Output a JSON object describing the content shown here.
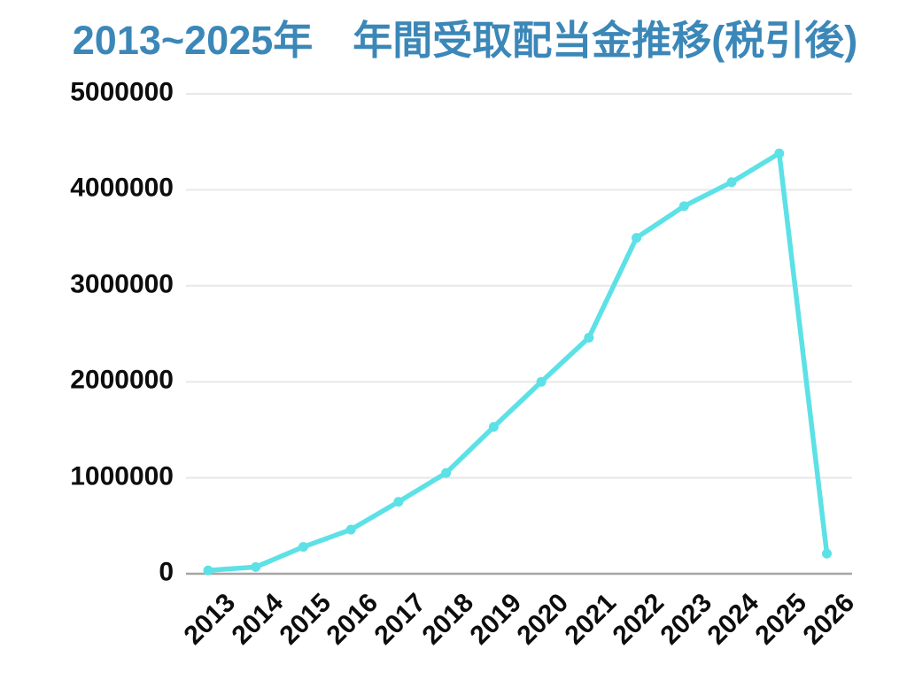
{
  "chart_data": {
    "type": "line",
    "title": "2013~2025年　年間受取配当金推移(税引後)",
    "categories": [
      "2013",
      "2014",
      "2015",
      "2016",
      "2017",
      "2018",
      "2019",
      "2020",
      "2021",
      "2022",
      "2023",
      "2024",
      "2025",
      "2026"
    ],
    "values": [
      35000,
      70000,
      280000,
      460000,
      750000,
      1050000,
      1530000,
      2000000,
      2460000,
      3500000,
      3830000,
      4080000,
      4380000,
      210000
    ],
    "xlabel": "",
    "ylabel": "",
    "ylim": [
      0,
      5000000
    ],
    "y_ticks": [
      0,
      1000000,
      2000000,
      3000000,
      4000000,
      5000000
    ],
    "y_tick_labels": [
      "0",
      "1000000",
      "2000000",
      "3000000",
      "4000000",
      "5000000"
    ],
    "grid": "horizontal",
    "legend": "none",
    "marker": "circle",
    "colors": {
      "line": "#5CE1E6",
      "marker": "#5CE1E6",
      "title": "#3B87B8",
      "tick_label": "#0D0D0D",
      "gridline": "#E8E8E8",
      "axis_line": "#A6A6A6",
      "background": "#FFFFFF"
    }
  }
}
